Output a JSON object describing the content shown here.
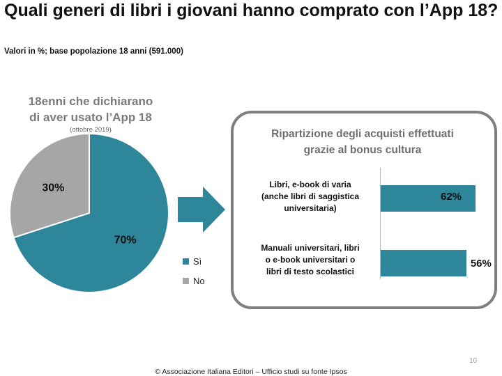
{
  "header": {
    "title": "Quali generi di libri i giovani hanno comprato con l’App 18?",
    "subtitle": "Valori in %; base popolazione 18 anni (591.000)"
  },
  "pie_section": {
    "heading_line1": "18enni che dichiarano",
    "heading_line2": "di aver usato l’App 18",
    "note": "(ottobre 2019)"
  },
  "bar_section": {
    "title_line1": "Ripartizione degli acquisti effettuati",
    "title_line2": "grazie al bonus cultura"
  },
  "colors": {
    "teal": "#2e869a",
    "gray": "#a6a6a6",
    "border": "#7f7f7f"
  },
  "chart_data": [
    {
      "type": "pie",
      "labels": [
        "Sì",
        "No"
      ],
      "values": [
        70,
        30
      ],
      "value_labels": [
        "70%",
        "30%"
      ],
      "colors": [
        "#2e869a",
        "#a6a6a6"
      ],
      "legend": "bottom-right"
    },
    {
      "type": "bar",
      "orientation": "horizontal",
      "categories": [
        [
          "Libri, e-book di varia",
          "(anche libri di saggistica",
          "universitaria)"
        ],
        [
          "Manuali universitari, libri",
          "o e-book universitari o",
          "libri di testo scolastici"
        ]
      ],
      "values": [
        62,
        56
      ],
      "value_labels": [
        "62%",
        "56%"
      ],
      "xlim": [
        0,
        100
      ],
      "grid": false
    }
  ],
  "footer": {
    "page_number": "10",
    "source": "© Associazione Italiana Editori – Ufficio studi su fonte Ipsos"
  }
}
